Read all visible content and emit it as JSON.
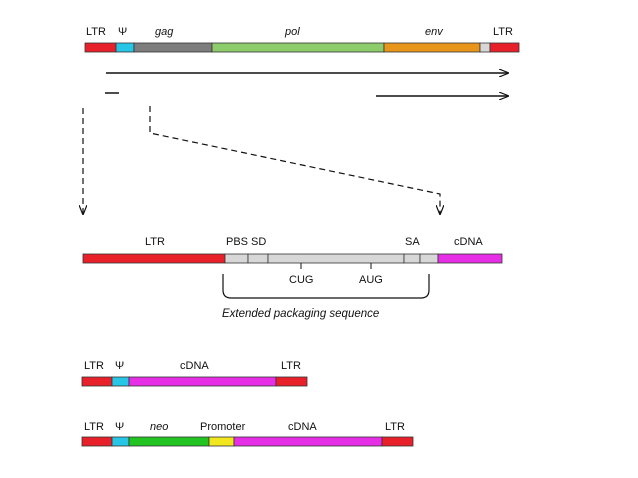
{
  "colors": {
    "ltr": "#e8202a",
    "psi": "#27c6e6",
    "gag": "#7d7d7d",
    "pol": "#8ccc6a",
    "env": "#e8951c",
    "grey": "#d7d7d7",
    "cdna": "#e62ee6",
    "neo": "#22c422",
    "promoter": "#f2e61e"
  },
  "provirus": {
    "ltr_left": "LTR",
    "psi": "Ψ",
    "gag": "gag",
    "pol": "pol",
    "env": "env",
    "ltr_right": "LTR"
  },
  "detail": {
    "ltr": "LTR",
    "pbs": "PBS",
    "sd": "SD",
    "sa": "SA",
    "cdna": "cDNA",
    "cug": "CUG",
    "aug": "AUG",
    "caption": "Extended packaging sequence"
  },
  "vector1": {
    "ltr_left": "LTR",
    "psi": "Ψ",
    "cdna": "cDNA",
    "ltr_right": "LTR"
  },
  "vector2": {
    "ltr_left": "LTR",
    "psi": "Ψ",
    "neo": "neo",
    "promoter": "Promoter",
    "cdna": "cDNA",
    "ltr_right": "LTR"
  }
}
